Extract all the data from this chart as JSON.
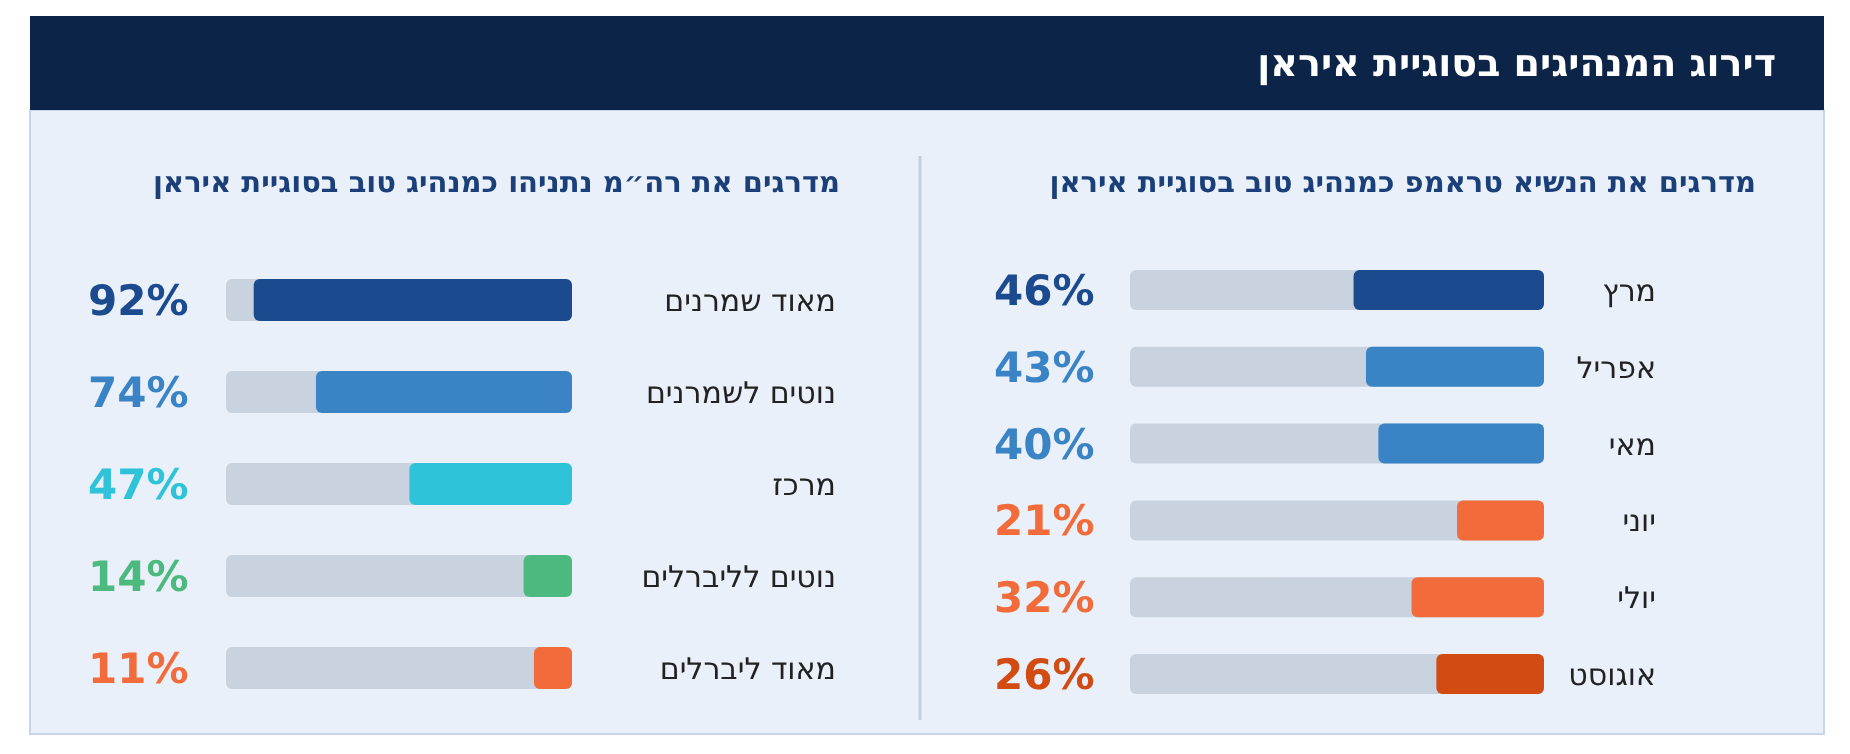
{
  "chart_data": [
    {
      "type": "bar",
      "orientation": "horizontal",
      "title": "דירוג המנהיגים בסוגיית איראן",
      "subtitle": "מדרגים את הנשיא טראמפ כמנהיג טוב בסוגיית איראן",
      "categories": [
        "מרץ",
        "אפריל",
        "מאי",
        "יוני",
        "יולי",
        "אוגוסט"
      ],
      "values": [
        46,
        43,
        40,
        21,
        32,
        26
      ],
      "colors": [
        "#1b4a8e",
        "#3a84c6",
        "#3a84c6",
        "#f26b3a",
        "#f26b3a",
        "#d24b12"
      ],
      "value_labels": [
        "46%",
        "43%",
        "40%",
        "21%",
        "32%",
        "26%"
      ],
      "xlim": [
        100,
        0
      ]
    },
    {
      "type": "bar",
      "orientation": "horizontal",
      "subtitle": "מדרגים את רה״מ נתניהו כמנהיג טוב בסוגיית איראן",
      "categories": [
        "מאוד שמרנים",
        "נוטים לשמרנים",
        "מרכז",
        "נוטים לליברלים",
        "מאוד ליברלים"
      ],
      "values": [
        92,
        74,
        47,
        14,
        11
      ],
      "colors": [
        "#1b4a8e",
        "#3a84c6",
        "#2ec3d8",
        "#4cb97f",
        "#f26b3a"
      ],
      "value_labels": [
        "92%",
        "74%",
        "47%",
        "14%",
        "11%"
      ],
      "xlim": [
        100,
        0
      ]
    }
  ]
}
